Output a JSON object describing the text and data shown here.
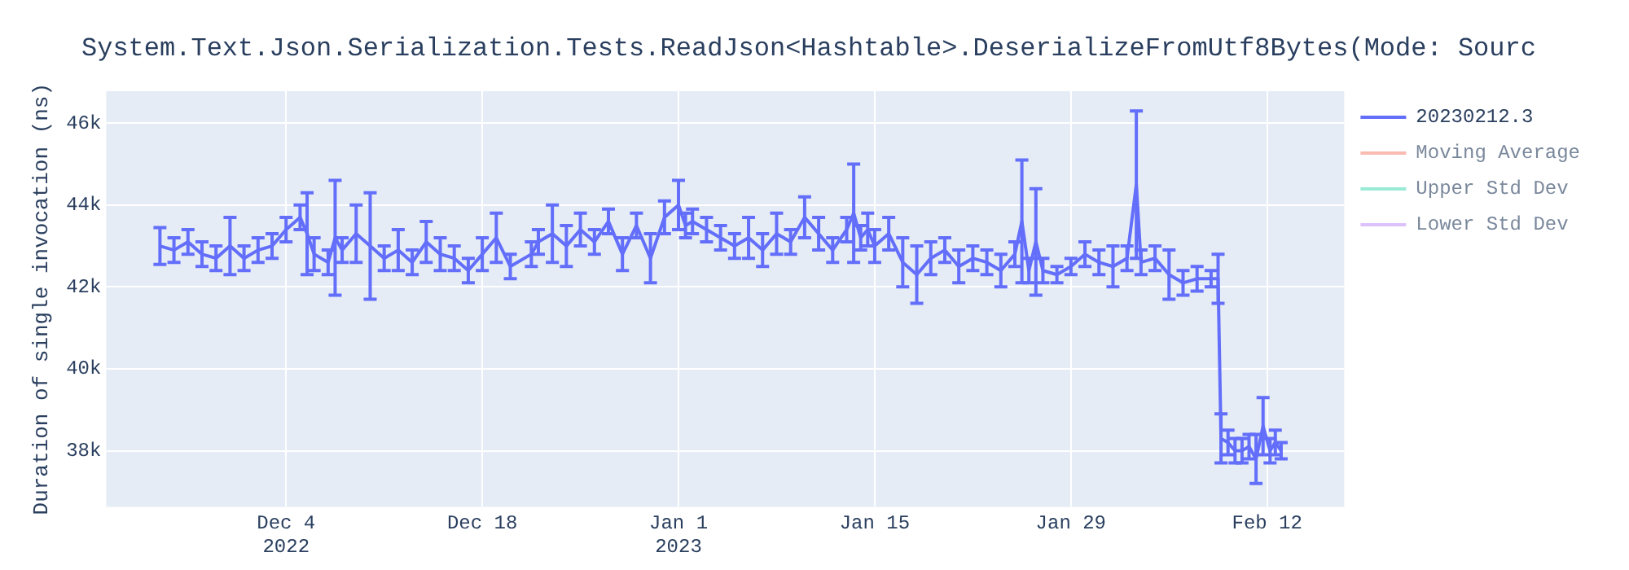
{
  "chart_data": {
    "type": "line",
    "title": "System.Text.Json.Serialization.Tests.ReadJson<Hashtable>.DeserializeFromUtf8Bytes(Mode: Sourc",
    "ylabel": "Duration of single invocation (ns)",
    "xlim": [
      "2022-11-21T04:00",
      "2023-02-17T12:00"
    ],
    "xticks": [
      {
        "value": "2022-12-04",
        "label": "Dec 4\n2022"
      },
      {
        "value": "2022-12-18",
        "label": "Dec 18"
      },
      {
        "value": "2023-01-01",
        "label": "Jan 1\n2023"
      },
      {
        "value": "2023-01-15",
        "label": "Jan 15"
      },
      {
        "value": "2023-01-29",
        "label": "Jan 29"
      },
      {
        "value": "2023-02-12",
        "label": "Feb 12"
      }
    ],
    "ylim": [
      36630,
      46780
    ],
    "yticks": [
      {
        "value": 38000,
        "label": "38k"
      },
      {
        "value": 40000,
        "label": "40k"
      },
      {
        "value": 42000,
        "label": "42k"
      },
      {
        "value": 44000,
        "label": "44k"
      },
      {
        "value": 46000,
        "label": "46k"
      }
    ],
    "grid": true,
    "legend": "top right",
    "series": [
      {
        "name": "20230212.3",
        "color": "#636efa",
        "x": [
          "2022-11-25",
          "2022-11-26",
          "2022-11-27",
          "2022-11-28",
          "2022-11-29",
          "2022-11-30",
          "2022-12-01",
          "2022-12-02",
          "2022-12-03",
          "2022-12-04",
          "2022-12-05",
          "2022-12-05T12:00",
          "2022-12-06",
          "2022-12-07",
          "2022-12-07T12:00",
          "2022-12-08",
          "2022-12-09",
          "2022-12-10",
          "2022-12-11",
          "2022-12-12",
          "2022-12-13",
          "2022-12-14",
          "2022-12-15",
          "2022-12-16",
          "2022-12-17",
          "2022-12-18",
          "2022-12-19",
          "2022-12-20",
          "2022-12-21T12:00",
          "2022-12-22",
          "2022-12-23",
          "2022-12-24",
          "2022-12-25",
          "2022-12-26",
          "2022-12-27",
          "2022-12-28",
          "2022-12-29",
          "2022-12-30",
          "2022-12-31",
          "2023-01-01",
          "2023-01-01T12:00",
          "2023-01-02",
          "2023-01-03",
          "2023-01-04",
          "2023-01-05",
          "2023-01-06",
          "2023-01-07",
          "2023-01-08",
          "2023-01-09",
          "2023-01-10",
          "2023-01-11",
          "2023-01-12",
          "2023-01-13",
          "2023-01-13T12:00",
          "2023-01-14",
          "2023-01-14T12:00",
          "2023-01-15",
          "2023-01-16",
          "2023-01-17",
          "2023-01-18",
          "2023-01-19",
          "2023-01-20",
          "2023-01-21",
          "2023-01-22",
          "2023-01-23",
          "2023-01-24",
          "2023-01-25",
          "2023-01-25T12:00",
          "2023-01-26",
          "2023-01-26T12:00",
          "2023-01-27",
          "2023-01-28",
          "2023-01-29",
          "2023-01-30",
          "2023-01-31",
          "2023-02-01",
          "2023-02-02",
          "2023-02-02T16:00",
          "2023-02-03",
          "2023-02-04",
          "2023-02-05",
          "2023-02-06",
          "2023-02-07",
          "2023-02-08",
          "2023-02-08T12:00",
          "2023-02-08T17:00",
          "2023-02-09T05:00",
          "2023-02-09T17:00",
          "2023-02-10T05:00",
          "2023-02-10T17:00",
          "2023-02-11T05:00",
          "2023-02-11T17:00",
          "2023-02-12T05:00",
          "2023-02-12T14:00",
          "2023-02-13"
        ],
        "values": [
          43000,
          42900,
          43100,
          42800,
          42700,
          43000,
          42700,
          42900,
          43000,
          43400,
          43700,
          43300,
          42800,
          42600,
          43200,
          42900,
          43300,
          43000,
          42700,
          42900,
          42600,
          43100,
          42800,
          42700,
          42400,
          42800,
          43200,
          42500,
          42800,
          43100,
          43300,
          43000,
          43400,
          43100,
          43600,
          42800,
          43500,
          42700,
          43700,
          44000,
          43500,
          43600,
          43400,
          43200,
          43000,
          43200,
          42900,
          43300,
          43100,
          43700,
          43300,
          42900,
          43400,
          43800,
          43200,
          43400,
          43000,
          43300,
          42600,
          42300,
          42700,
          42900,
          42500,
          42700,
          42600,
          42400,
          42800,
          43600,
          42400,
          43100,
          42400,
          42300,
          42500,
          42800,
          42600,
          42500,
          42700,
          44500,
          42600,
          42700,
          42300,
          42100,
          42200,
          42200,
          42200,
          38300,
          38200,
          38000,
          38000,
          38100,
          37800,
          38600,
          38000,
          38200,
          38000
        ],
        "errors": [
          450,
          300,
          300,
          300,
          300,
          700,
          300,
          300,
          300,
          300,
          300,
          1000,
          400,
          300,
          1400,
          300,
          700,
          1300,
          300,
          500,
          300,
          500,
          400,
          300,
          300,
          400,
          600,
          300,
          300,
          300,
          700,
          500,
          400,
          300,
          300,
          400,
          300,
          600,
          400,
          600,
          300,
          300,
          300,
          300,
          300,
          500,
          400,
          500,
          300,
          500,
          400,
          300,
          300,
          1200,
          300,
          400,
          400,
          400,
          600,
          700,
          400,
          300,
          400,
          300,
          300,
          400,
          300,
          1500,
          300,
          1300,
          300,
          200,
          200,
          300,
          300,
          500,
          300,
          1800,
          300,
          300,
          600,
          300,
          300,
          200,
          600,
          600,
          300,
          300,
          300,
          300,
          600,
          700,
          300,
          300,
          200
        ]
      },
      {
        "name": "Moving Average",
        "color": "#ef553b"
      },
      {
        "name": "Upper Std Dev",
        "color": "#00cc96"
      },
      {
        "name": "Lower Std Dev",
        "color": "#ab63fa"
      }
    ]
  }
}
